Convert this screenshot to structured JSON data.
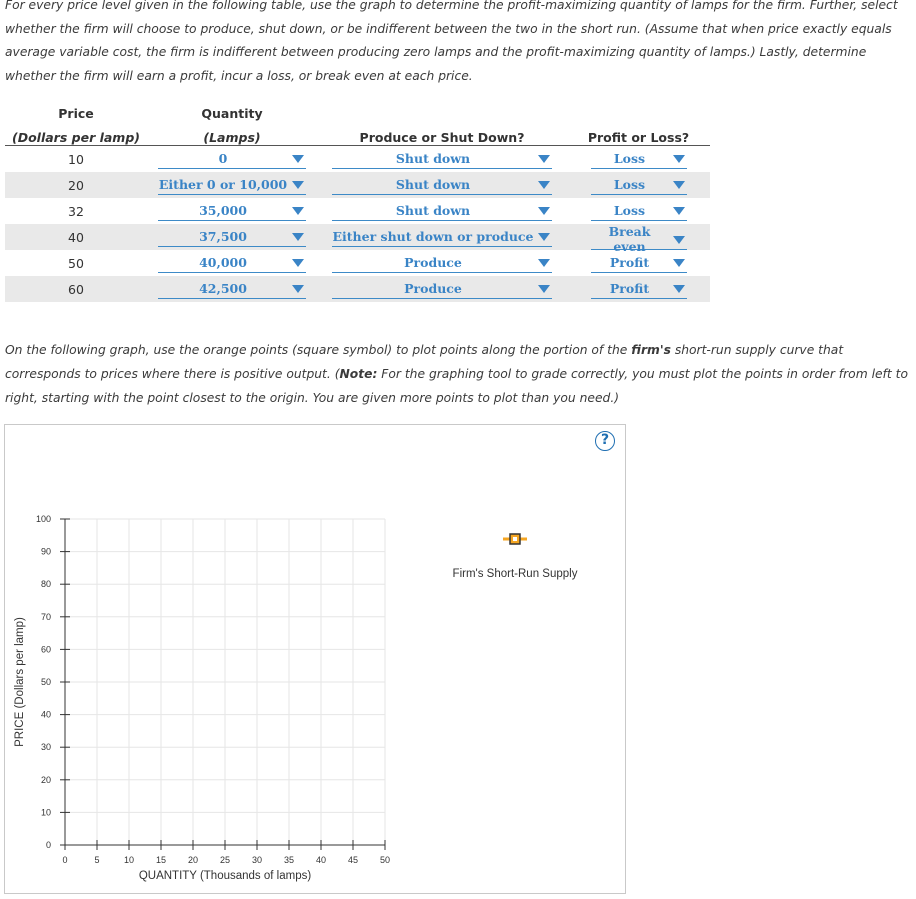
{
  "intro_text": "For every price level given in the following table, use the graph to determine the profit-maximizing quantity of lamps for the firm. Further, select whether the firm will choose to produce, shut down, or be indifferent between the two in the short run. (Assume that when price exactly equals average variable cost, the firm is indifferent between producing zero lamps and the profit-maximizing quantity of lamps.) Lastly, determine whether the firm will earn a profit, incur a loss, or break even at each price.",
  "table": {
    "headers": {
      "price": "Price",
      "price_unit": "(Dollars per lamp)",
      "quantity": "Quantity",
      "quantity_unit": "(Lamps)",
      "produce": "Produce or Shut Down?",
      "profit": "Profit or Loss?"
    },
    "rows": [
      {
        "price": "10",
        "quantity": "0",
        "decision": "Shut down",
        "profit": "Loss"
      },
      {
        "price": "20",
        "quantity": "Either 0 or 10,000",
        "decision": "Shut down",
        "profit": "Loss"
      },
      {
        "price": "32",
        "quantity": "35,000",
        "decision": "Shut down",
        "profit": "Loss"
      },
      {
        "price": "40",
        "quantity": "37,500",
        "decision": "Either shut down or produce",
        "profit": "Break even"
      },
      {
        "price": "50",
        "quantity": "40,000",
        "decision": "Produce",
        "profit": "Profit"
      },
      {
        "price": "60",
        "quantity": "42,500",
        "decision": "Produce",
        "profit": "Profit"
      }
    ]
  },
  "instructions": {
    "part1": "On the following graph, use the orange points (square symbol) to plot points along the portion of the ",
    "bold1": "firm's",
    "part2": " short-run supply curve that corresponds to prices where there is positive output. (",
    "bold2": "Note:",
    "part3": " For the graphing tool to grade correctly, you must plot the points in order from left to right, starting with the point closest to the origin. You are given more points to plot than you need.)"
  },
  "graph": {
    "help_label": "?",
    "ylabel": "PRICE (Dollars per lamp)",
    "xlabel": "QUANTITY (Thousands of lamps)",
    "x_ticks": [
      "0",
      "5",
      "10",
      "15",
      "20",
      "25",
      "30",
      "35",
      "40",
      "45",
      "50"
    ],
    "y_ticks": [
      "0",
      "10",
      "20",
      "30",
      "40",
      "50",
      "60",
      "70",
      "80",
      "90",
      "100"
    ],
    "legend_label": "Firm's Short-Run Supply",
    "legend_icon": "orange-square-point-icon",
    "colors": {
      "point": "#f5a623",
      "point_border": "#333333",
      "grid": "#e6e6e6",
      "axis": "#333333",
      "accent": "#3a84c6"
    }
  }
}
